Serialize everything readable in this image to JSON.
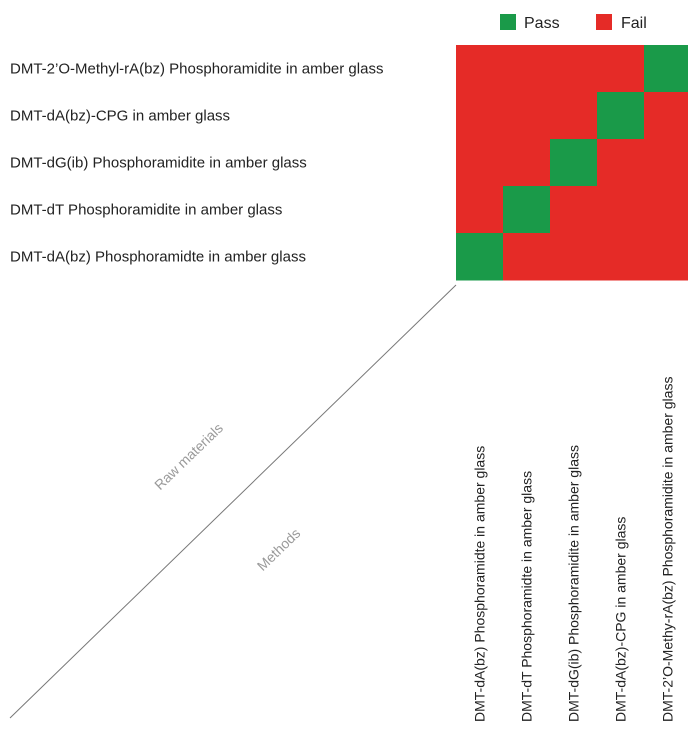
{
  "chart_data": {
    "type": "heatmap",
    "title": "",
    "legend": [
      {
        "name": "Pass",
        "color": "#1a9a49"
      },
      {
        "name": "Fail",
        "color": "#e52b27"
      }
    ],
    "legend_placement": "top-right",
    "row_axis_label": "Raw materials",
    "col_axis_label": "Methods",
    "rows": [
      "DMT-2’O-Methyl-rA(bz) Phosphoramidite in amber glass",
      "DMT-dA(bz)-CPG in amber glass",
      "DMT-dG(ib) Phosphoramidite in amber glass",
      "DMT-dT Phosphoramidite in amber glass",
      "DMT-dA(bz) Phosphoramidte in amber glass"
    ],
    "columns": [
      "DMT-dA(bz) Phosphoramidte in amber glass",
      "DMT-dT Phosphoramidte in amber glass",
      "DMT-dG(ib) Phosphoramidite in amber glass",
      "DMT-dA(bz)-CPG in amber glass",
      "DMT-2’O-Methy-rA(bz) Phosphoramidite in amber glass"
    ],
    "values": [
      [
        "Fail",
        "Fail",
        "Fail",
        "Fail",
        "Pass"
      ],
      [
        "Fail",
        "Fail",
        "Fail",
        "Pass",
        "Fail"
      ],
      [
        "Fail",
        "Fail",
        "Pass",
        "Fail",
        "Fail"
      ],
      [
        "Fail",
        "Pass",
        "Fail",
        "Fail",
        "Fail"
      ],
      [
        "Pass",
        "Fail",
        "Fail",
        "Fail",
        "Fail"
      ]
    ]
  }
}
